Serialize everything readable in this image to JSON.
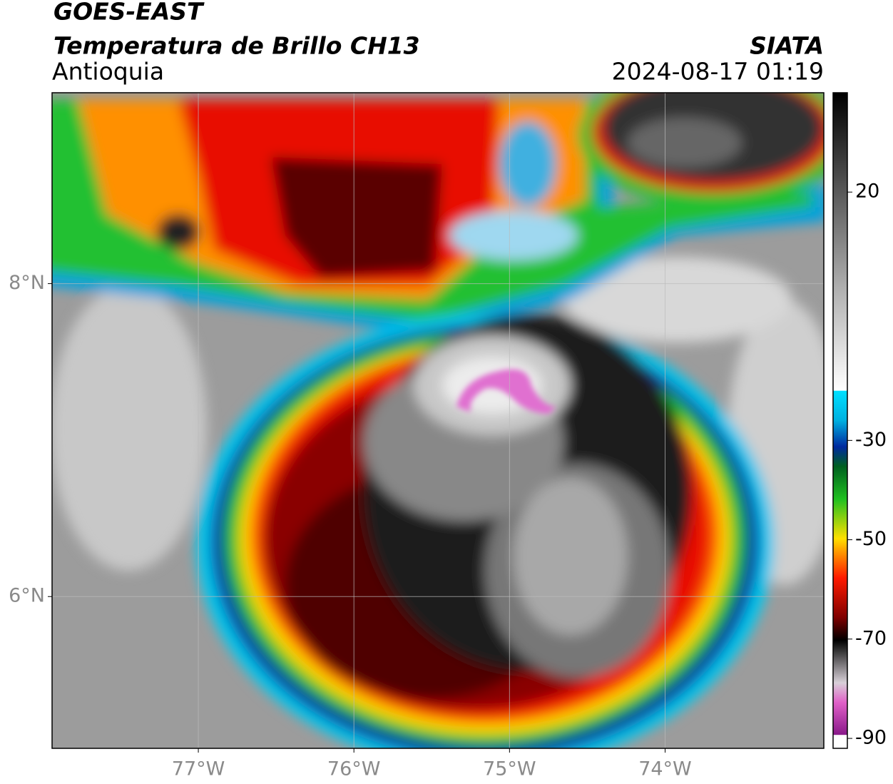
{
  "header": {
    "title": "GOES-EAST",
    "subtitle": "Temperatura de Brillo CH13",
    "region": "Antioquia",
    "source": "SIATA",
    "datetime": "2024-08-17 01:19"
  },
  "map": {
    "xlim": [
      -77.94,
      -72.98
    ],
    "ylim": [
      5.03,
      9.22
    ],
    "xticks": [
      {
        "value": -77,
        "label": "77°W"
      },
      {
        "value": -76,
        "label": "76°W"
      },
      {
        "value": -75,
        "label": "75°W"
      },
      {
        "value": -74,
        "label": "74°W"
      }
    ],
    "yticks": [
      {
        "value": 6,
        "label": "6°N"
      },
      {
        "value": 8,
        "label": "8°N"
      }
    ],
    "grid": true
  },
  "colorbar": {
    "lim": [
      -92,
      40
    ],
    "ticks": [
      -90,
      -70,
      -50,
      -30,
      20
    ]
  }
}
